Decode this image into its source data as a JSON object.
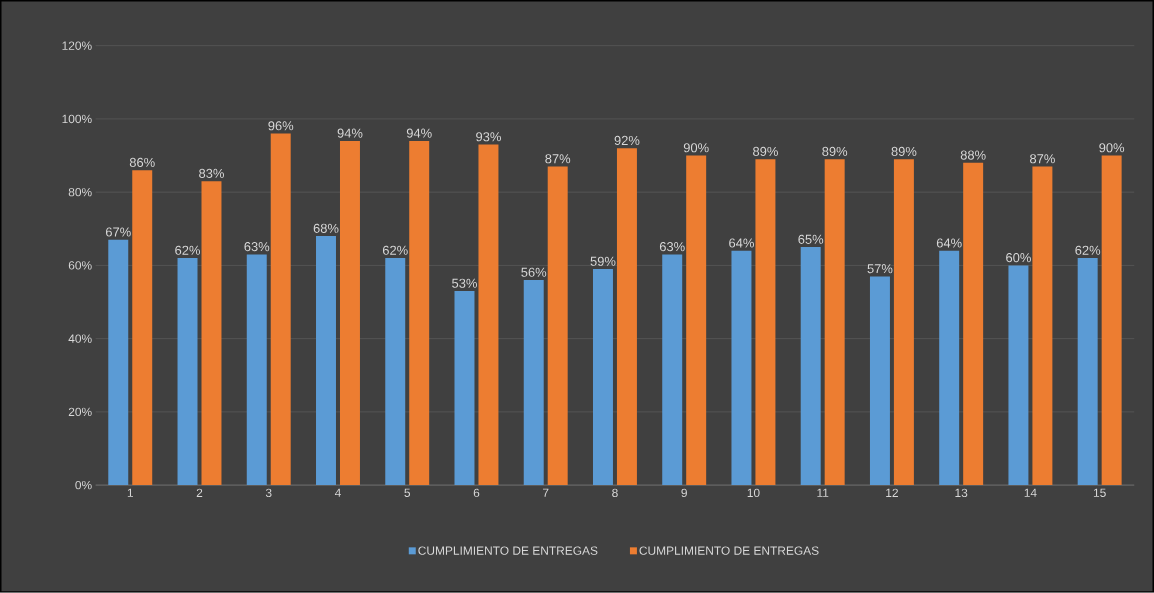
{
  "chart_data": {
    "type": "bar",
    "categories": [
      "1",
      "2",
      "3",
      "4",
      "5",
      "6",
      "7",
      "8",
      "9",
      "10",
      "11",
      "12",
      "13",
      "14",
      "15"
    ],
    "series": [
      {
        "name": "CUMPLIMIENTO DE ENTREGAS",
        "color": "#5b9bd5",
        "values": [
          67,
          62,
          63,
          68,
          62,
          53,
          56,
          59,
          63,
          64,
          65,
          57,
          64,
          60,
          62
        ],
        "value_labels": [
          "67%",
          "62%",
          "63%",
          "68%",
          "62%",
          "53%",
          "56%",
          "59%",
          "63%",
          "64%",
          "65%",
          "57%",
          "64%",
          "60%",
          "62%"
        ]
      },
      {
        "name": "CUMPLIMIENTO DE ENTREGAS",
        "color": "#ed7d31",
        "values": [
          86,
          83,
          96,
          94,
          94,
          93,
          87,
          92,
          90,
          89,
          89,
          89,
          88,
          87,
          90
        ],
        "value_labels": [
          "86%",
          "83%",
          "96%",
          "94%",
          "94%",
          "93%",
          "87%",
          "92%",
          "90%",
          "89%",
          "89%",
          "89%",
          "88%",
          "87%",
          "90%"
        ]
      }
    ],
    "ylim": [
      0,
      120
    ],
    "yticks": [
      {
        "value": 0,
        "label": "0%"
      },
      {
        "value": 20,
        "label": "20%"
      },
      {
        "value": 40,
        "label": "40%"
      },
      {
        "value": 60,
        "label": "60%"
      },
      {
        "value": 80,
        "label": "80%"
      },
      {
        "value": 100,
        "label": "100%"
      },
      {
        "value": 120,
        "label": "120%"
      }
    ],
    "grid": "y",
    "legend": "bottom"
  }
}
